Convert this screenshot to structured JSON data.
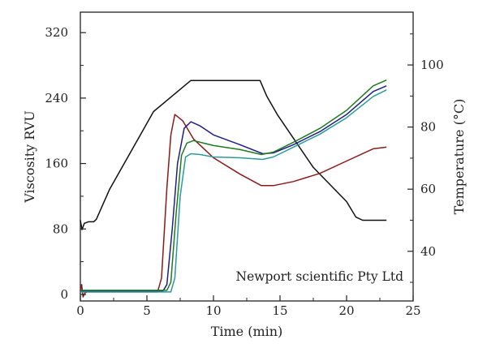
{
  "chart_data": {
    "type": "line",
    "x_axis": {
      "label": "Time (min)",
      "range": [
        0,
        25
      ],
      "ticks": [
        0,
        5,
        10,
        15,
        20,
        25
      ]
    },
    "y_axis_left": {
      "label": "Viscosity RVU",
      "range": [
        -8,
        345
      ],
      "ticks": [
        0,
        80,
        160,
        240,
        320
      ]
    },
    "y_axis_right": {
      "label": "Temperature (°C)",
      "range": [
        24,
        117
      ],
      "ticks": [
        40,
        60,
        80,
        100
      ]
    },
    "annotation": "Newport scientific Pty Ltd",
    "grid": false,
    "series": [
      {
        "axis": "right",
        "color": "#111111",
        "points": [
          [
            0,
            50
          ],
          [
            0.12,
            47
          ],
          [
            0.3,
            49
          ],
          [
            0.6,
            49.5
          ],
          [
            1.0,
            49.5
          ],
          [
            1.2,
            50.3
          ],
          [
            2.2,
            60
          ],
          [
            5.5,
            85
          ],
          [
            8.3,
            95
          ],
          [
            8.6,
            95
          ],
          [
            13.5,
            95
          ],
          [
            14.0,
            90
          ],
          [
            14.8,
            84
          ],
          [
            17.5,
            67
          ],
          [
            20.0,
            56
          ],
          [
            20.7,
            51
          ],
          [
            21.2,
            50
          ],
          [
            23.0,
            50
          ]
        ]
      },
      {
        "axis": "left",
        "color": "#8b1a1a",
        "points": [
          [
            0,
            4
          ],
          [
            0.1,
            12
          ],
          [
            0.2,
            -3
          ],
          [
            0.35,
            2
          ],
          [
            0.5,
            3
          ],
          [
            5.8,
            3
          ],
          [
            6.1,
            20
          ],
          [
            6.5,
            130
          ],
          [
            6.8,
            195
          ],
          [
            7.1,
            220
          ],
          [
            7.7,
            212
          ],
          [
            8.5,
            190
          ],
          [
            10,
            167
          ],
          [
            12,
            147
          ],
          [
            13.6,
            133
          ],
          [
            14.5,
            133
          ],
          [
            16,
            138
          ],
          [
            18,
            148
          ],
          [
            20,
            163
          ],
          [
            22,
            178
          ],
          [
            23,
            180
          ]
        ]
      },
      {
        "axis": "left",
        "color": "#1f1f8a",
        "points": [
          [
            0,
            4
          ],
          [
            6.2,
            4
          ],
          [
            6.5,
            12
          ],
          [
            6.9,
            80
          ],
          [
            7.3,
            160
          ],
          [
            7.8,
            203
          ],
          [
            8.3,
            211
          ],
          [
            9,
            206
          ],
          [
            10,
            195
          ],
          [
            12,
            183
          ],
          [
            13.7,
            172
          ],
          [
            14.5,
            173
          ],
          [
            16,
            183
          ],
          [
            18,
            199
          ],
          [
            20,
            220
          ],
          [
            22,
            248
          ],
          [
            23,
            255
          ]
        ]
      },
      {
        "axis": "left",
        "color": "#1f7a1f",
        "points": [
          [
            0,
            5
          ],
          [
            6.5,
            5
          ],
          [
            6.8,
            15
          ],
          [
            7.2,
            100
          ],
          [
            7.6,
            170
          ],
          [
            8.0,
            185
          ],
          [
            8.5,
            188
          ],
          [
            10,
            182
          ],
          [
            12,
            177
          ],
          [
            13.6,
            171
          ],
          [
            14.5,
            174
          ],
          [
            16,
            186
          ],
          [
            18,
            203
          ],
          [
            20,
            225
          ],
          [
            22,
            255
          ],
          [
            23,
            262
          ]
        ]
      },
      {
        "axis": "left",
        "color": "#2a9a9a",
        "points": [
          [
            0,
            3
          ],
          [
            6.8,
            3
          ],
          [
            7.1,
            20
          ],
          [
            7.5,
            120
          ],
          [
            7.9,
            168
          ],
          [
            8.3,
            172
          ],
          [
            9,
            171
          ],
          [
            10,
            168
          ],
          [
            12,
            167
          ],
          [
            13.7,
            165
          ],
          [
            14.5,
            168
          ],
          [
            16,
            180
          ],
          [
            18,
            196
          ],
          [
            20,
            216
          ],
          [
            22,
            242
          ],
          [
            23,
            250
          ]
        ]
      }
    ]
  }
}
